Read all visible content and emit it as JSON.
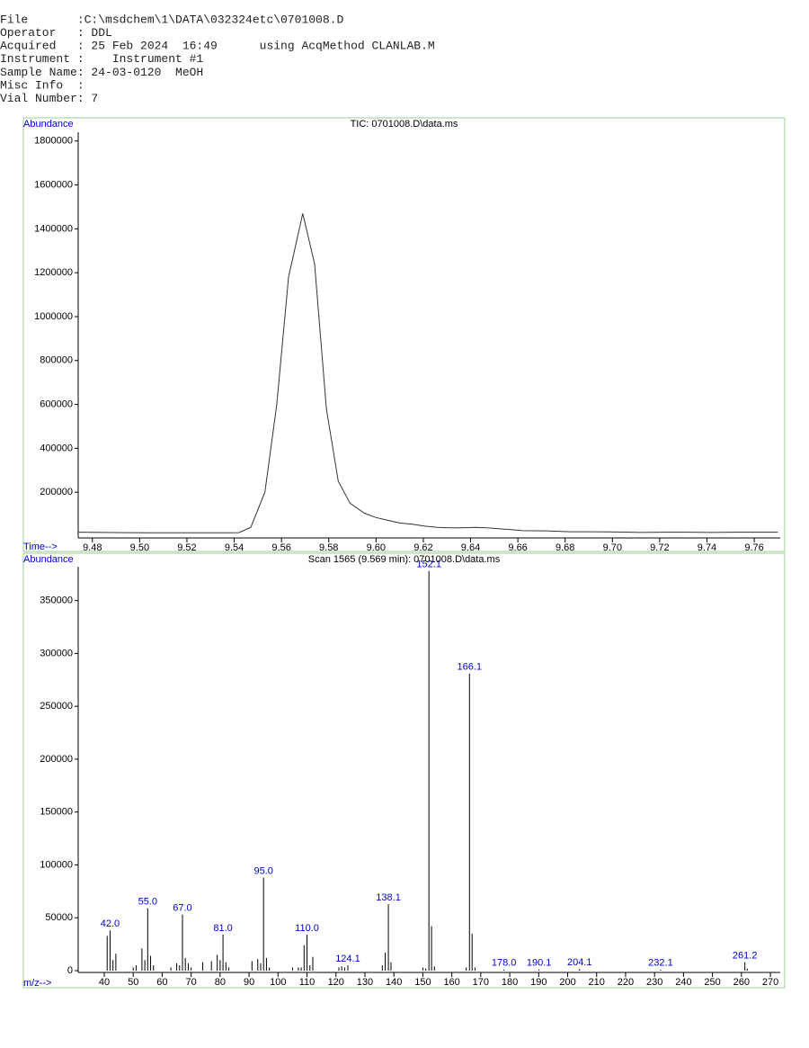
{
  "header": {
    "lines": [
      "File       :C:\\msdchem\\1\\DATA\\032324etc\\0701008.D",
      "Operator   : DDL",
      "Acquired   : 25 Feb 2024  16:49      using AcqMethod CLANLAB.M",
      "Instrument :    Instrument #1",
      "Sample Name: 24-03-0120  MeOH",
      "Misc Info  :",
      "Vial Number: 7"
    ]
  },
  "chart_data": [
    {
      "type": "line",
      "title": "TIC: 0701008.D\\data.ms",
      "y_label": "Abundance",
      "x_label": "Time-->",
      "color": "#333333",
      "x": [
        9.474,
        9.484,
        9.494,
        9.504,
        9.514,
        9.524,
        9.534,
        9.542,
        9.547,
        9.553,
        9.558,
        9.563,
        9.569,
        9.574,
        9.579,
        9.584,
        9.589,
        9.595,
        9.6,
        9.605,
        9.61,
        9.615,
        9.621,
        9.626,
        9.631,
        9.636,
        9.642,
        9.647,
        9.652,
        9.657,
        9.662,
        9.672,
        9.682,
        9.692,
        9.702,
        9.712,
        9.722,
        9.732,
        9.742,
        9.752,
        9.762,
        9.77
      ],
      "values": [
        18000,
        17000,
        16000,
        15000,
        15000,
        15000,
        15000,
        16000,
        40000,
        200000,
        600000,
        1180000,
        1470000,
        1240000,
        580000,
        250000,
        150000,
        105000,
        85000,
        72000,
        60000,
        55000,
        45000,
        40000,
        38000,
        38000,
        40000,
        38000,
        34000,
        30000,
        25000,
        24000,
        20000,
        20000,
        19000,
        17000,
        18000,
        18000,
        17000,
        18000,
        18000,
        18000
      ],
      "xlim": [
        9.474,
        9.771
      ],
      "ylim": [
        0,
        1840000
      ],
      "xticks": [
        9.48,
        {
          "value": 9.5,
          "label": "9.50"
        },
        9.52,
        9.54,
        9.56,
        9.58,
        {
          "value": 9.6,
          "label": "9.60"
        },
        9.62,
        9.64,
        9.66,
        9.68,
        {
          "value": 9.7,
          "label": "9.70"
        },
        9.72,
        9.74,
        9.76
      ],
      "yticks": [
        200000,
        400000,
        600000,
        800000,
        1000000,
        1200000,
        1400000,
        1600000,
        1800000
      ]
    },
    {
      "type": "stem",
      "title": "Scan 1565 (9.569 min): 0701008.D\\data.ms",
      "y_label": "Abundance",
      "x_label": "m/z-->",
      "color": "#000000",
      "label_color": "#0000cc",
      "x": [
        41,
        42.0,
        43,
        44,
        50,
        51,
        53,
        54,
        55.0,
        56,
        57,
        63,
        65,
        66,
        67.0,
        68,
        69,
        70,
        74,
        77,
        79,
        80,
        81.0,
        82,
        83,
        91,
        93,
        94,
        95.0,
        96,
        97,
        105,
        107,
        108,
        109,
        110.0,
        111,
        112,
        121,
        122,
        123,
        124.1,
        136,
        137,
        138.1,
        139,
        150,
        151,
        152.1,
        153,
        154,
        165,
        166.1,
        167,
        168,
        178.0,
        190.1,
        204.1,
        232.1,
        261.2,
        262
      ],
      "values": [
        33000,
        38000,
        10000,
        16000,
        3000,
        5000,
        21000,
        10000,
        59000,
        14000,
        5000,
        3000,
        7000,
        5000,
        53000,
        12000,
        7000,
        3000,
        8000,
        9000,
        15000,
        10000,
        34000,
        8000,
        3000,
        9000,
        11000,
        7000,
        88000,
        12000,
        3000,
        3000,
        3000,
        3000,
        24000,
        34000,
        5000,
        13000,
        3000,
        4000,
        3000,
        5000,
        5000,
        17000,
        63000,
        8000,
        3000,
        2000,
        378000,
        42000,
        4000,
        3000,
        281000,
        35000,
        3000,
        1000,
        1000,
        1500,
        1000,
        8000,
        2000
      ],
      "x_labels": [
        null,
        "42.0",
        null,
        null,
        null,
        null,
        null,
        null,
        "55.0",
        null,
        null,
        null,
        null,
        null,
        "67.0",
        null,
        null,
        null,
        null,
        null,
        null,
        null,
        "81.0",
        null,
        null,
        null,
        null,
        null,
        "95.0",
        null,
        null,
        null,
        null,
        null,
        null,
        "110.0",
        null,
        null,
        null,
        null,
        null,
        "124.1",
        null,
        null,
        "138.1",
        null,
        null,
        null,
        "152.1",
        null,
        null,
        null,
        "166.1",
        null,
        null,
        "178.0",
        "190.1",
        "204.1",
        "232.1",
        "261.2",
        null
      ],
      "xlim": [
        31,
        273.4
      ],
      "ylim": [
        0,
        382000
      ],
      "xticks": [
        40,
        50,
        60,
        70,
        80,
        90,
        100,
        110,
        120,
        130,
        140,
        150,
        160,
        170,
        180,
        190,
        200,
        210,
        220,
        230,
        240,
        250,
        260,
        270
      ],
      "yticks": [
        0,
        50000,
        100000,
        150000,
        200000,
        250000,
        300000,
        350000
      ]
    }
  ]
}
